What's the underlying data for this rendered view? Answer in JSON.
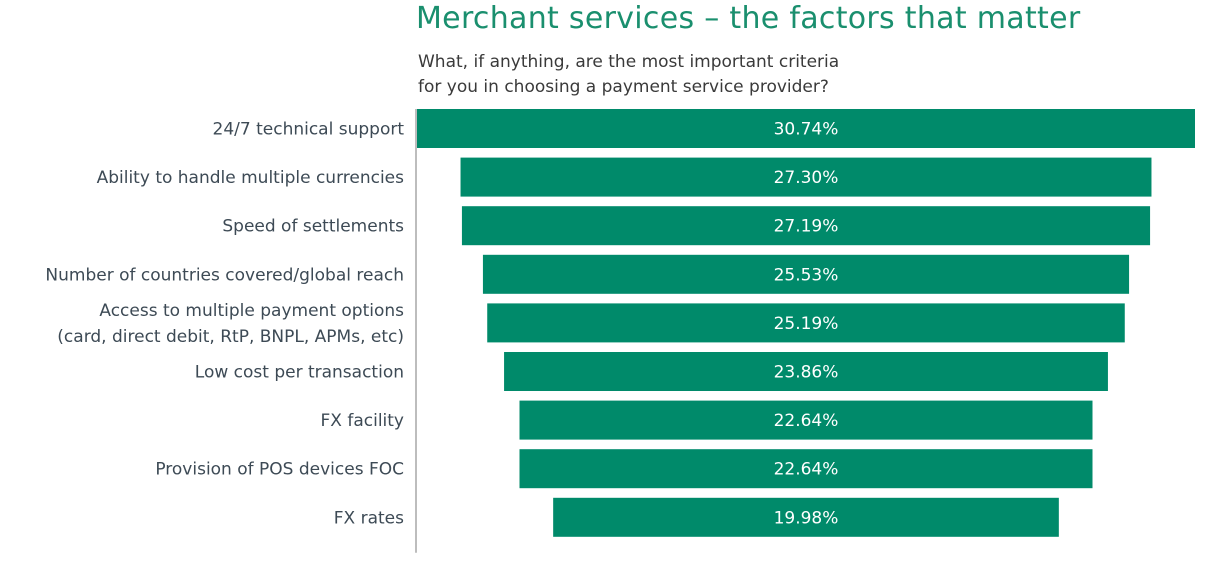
{
  "title": "Merchant services – the factors that matter",
  "subtitle_line1": "What, if anything, are the most important criteria",
  "subtitle_line2": "for you in choosing a payment service provider?",
  "colors": {
    "bar": "#008a6a",
    "title": "#1a8f6e",
    "axis": "#bdbdbd",
    "category_text": "#3d4a55",
    "value_text": "#ffffff"
  },
  "chart_data": {
    "type": "bar",
    "orientation": "horizontal",
    "alignment": "centered",
    "categories": [
      [
        "24/7 technical support"
      ],
      [
        "Ability to handle multiple currencies"
      ],
      [
        "Speed of settlements"
      ],
      [
        "Number of countries covered/global reach"
      ],
      [
        "Access to multiple payment options",
        "(card, direct debit, RtP, BNPL, APMs, etc)"
      ],
      [
        "Low cost per transaction"
      ],
      [
        "FX facility"
      ],
      [
        "Provision of POS devices FOC"
      ],
      [
        "FX rates"
      ]
    ],
    "values": [
      30.74,
      27.3,
      27.19,
      25.53,
      25.19,
      23.86,
      22.64,
      22.64,
      19.98
    ],
    "value_labels": [
      "30.74%",
      "27.30%",
      "27.19%",
      "25.53%",
      "25.19%",
      "23.86%",
      "22.64%",
      "22.64%",
      "19.98%"
    ],
    "unit": "%",
    "xlim": [
      0,
      30.74
    ],
    "grid": false,
    "legend": "none"
  }
}
